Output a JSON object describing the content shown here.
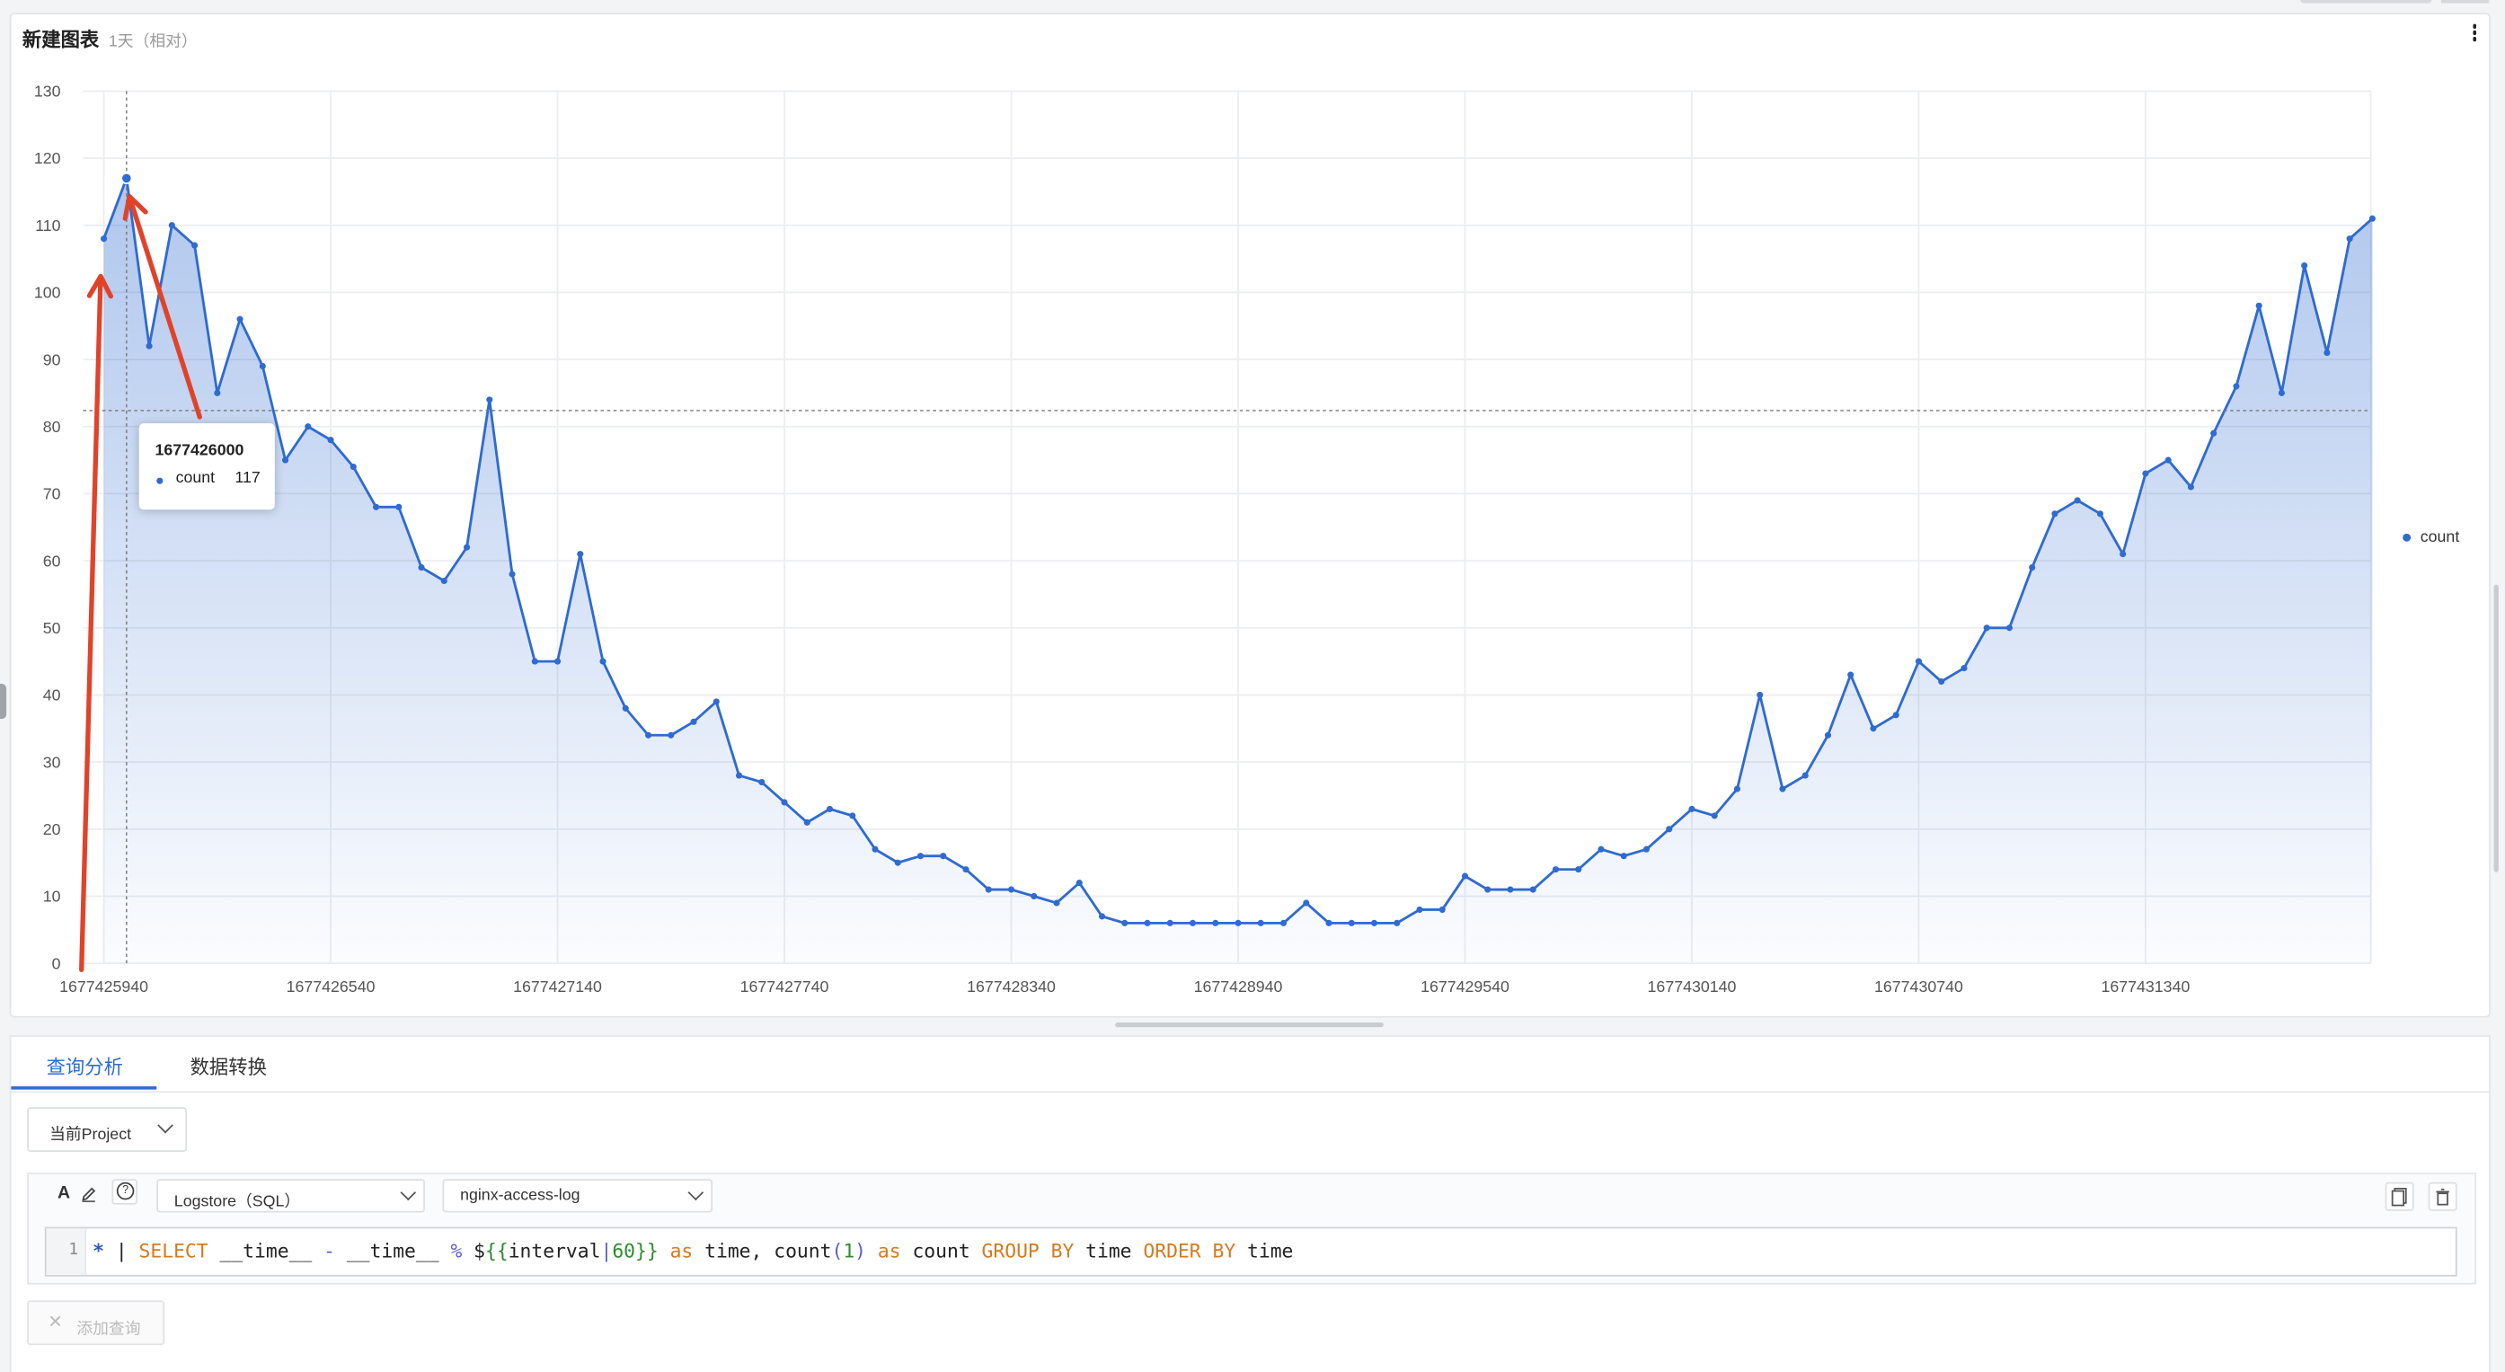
{
  "chart_panel": {
    "title": "新建图表",
    "time_range": "1天（相对）"
  },
  "tooltip": {
    "title": "1677426000",
    "series_label": "count",
    "value": "117"
  },
  "legend": {
    "items": [
      "count"
    ]
  },
  "colors": {
    "series": "#2f6bd0",
    "annotation_arrow": "#e0432a",
    "active_tab": "#2f6bd0"
  },
  "chart_data": {
    "type": "area",
    "title": "",
    "xlabel": "",
    "ylabel": "",
    "x_ticks": [
      "1677425940",
      "1677426540",
      "1677427140",
      "1677427740",
      "1677428340",
      "1677428940",
      "1677429540",
      "1677430140",
      "1677430740",
      "1677431340"
    ],
    "y_ticks": [
      0,
      10,
      20,
      30,
      40,
      50,
      60,
      70,
      80,
      90,
      100,
      110,
      120,
      130
    ],
    "ylim": [
      0,
      130
    ],
    "x_start": 1677425940,
    "x_step": 60,
    "series": [
      {
        "name": "count",
        "values": [
          108,
          117,
          92,
          110,
          107,
          85,
          96,
          89,
          75,
          80,
          78,
          74,
          68,
          68,
          59,
          57,
          62,
          84,
          58,
          45,
          45,
          61,
          45,
          38,
          34,
          34,
          36,
          39,
          28,
          27,
          24,
          21,
          23,
          22,
          17,
          15,
          16,
          16,
          14,
          11,
          11,
          10,
          9,
          12,
          7,
          6,
          6,
          6,
          6,
          6,
          6,
          6,
          6,
          9,
          6,
          6,
          6,
          6,
          8,
          8,
          13,
          11,
          11,
          11,
          14,
          14,
          17,
          16,
          17,
          20,
          23,
          22,
          26,
          40,
          26,
          28,
          34,
          43,
          35,
          37,
          45,
          42,
          44,
          50,
          50,
          59,
          67,
          69,
          67,
          61,
          73,
          75,
          71,
          79,
          86,
          98,
          85,
          104,
          91,
          108,
          111
        ]
      }
    ],
    "hover": {
      "x": "1677426000",
      "value": 117
    },
    "grid": true,
    "legend_position": "right",
    "annotations": "two red arrows pointing at the first points / peak"
  },
  "tabs": [
    {
      "label": "查询分析",
      "active": true
    },
    {
      "label": "数据转换",
      "active": false
    }
  ],
  "project_select": {
    "value": "当前Project"
  },
  "query": {
    "format_icon": "A",
    "help_icon": "?",
    "logstore_type": "Logstore（SQL）",
    "logstore_name": "nginx-access-log",
    "line_number": "1",
    "code_tokens": [
      {
        "t": "*",
        "c": "t-star"
      },
      {
        "t": " | ",
        "c": "t-plain"
      },
      {
        "t": "SELECT",
        "c": "t-kw"
      },
      {
        "t": " __time__ ",
        "c": "t-plain"
      },
      {
        "t": "-",
        "c": "t-op"
      },
      {
        "t": " __time__ ",
        "c": "t-plain"
      },
      {
        "t": "%",
        "c": "t-op"
      },
      {
        "t": " $",
        "c": "t-plain"
      },
      {
        "t": "{{",
        "c": "t-var"
      },
      {
        "t": "interval",
        "c": "t-plain"
      },
      {
        "t": "|",
        "c": "t-op"
      },
      {
        "t": "60",
        "c": "t-num"
      },
      {
        "t": "}}",
        "c": "t-var"
      },
      {
        "t": " as ",
        "c": "t-kw"
      },
      {
        "t": "time, ",
        "c": "t-plain"
      },
      {
        "t": "count",
        "c": "t-plain"
      },
      {
        "t": "(",
        "c": "t-op"
      },
      {
        "t": "1",
        "c": "t-num"
      },
      {
        "t": ")",
        "c": "t-op"
      },
      {
        "t": " as ",
        "c": "t-kw"
      },
      {
        "t": "count ",
        "c": "t-plain"
      },
      {
        "t": "GROUP BY",
        "c": "t-kw"
      },
      {
        "t": " time ",
        "c": "t-plain"
      },
      {
        "t": "ORDER BY",
        "c": "t-kw"
      },
      {
        "t": " time",
        "c": "t-plain"
      }
    ]
  },
  "add_query": {
    "label": "添加查询"
  }
}
